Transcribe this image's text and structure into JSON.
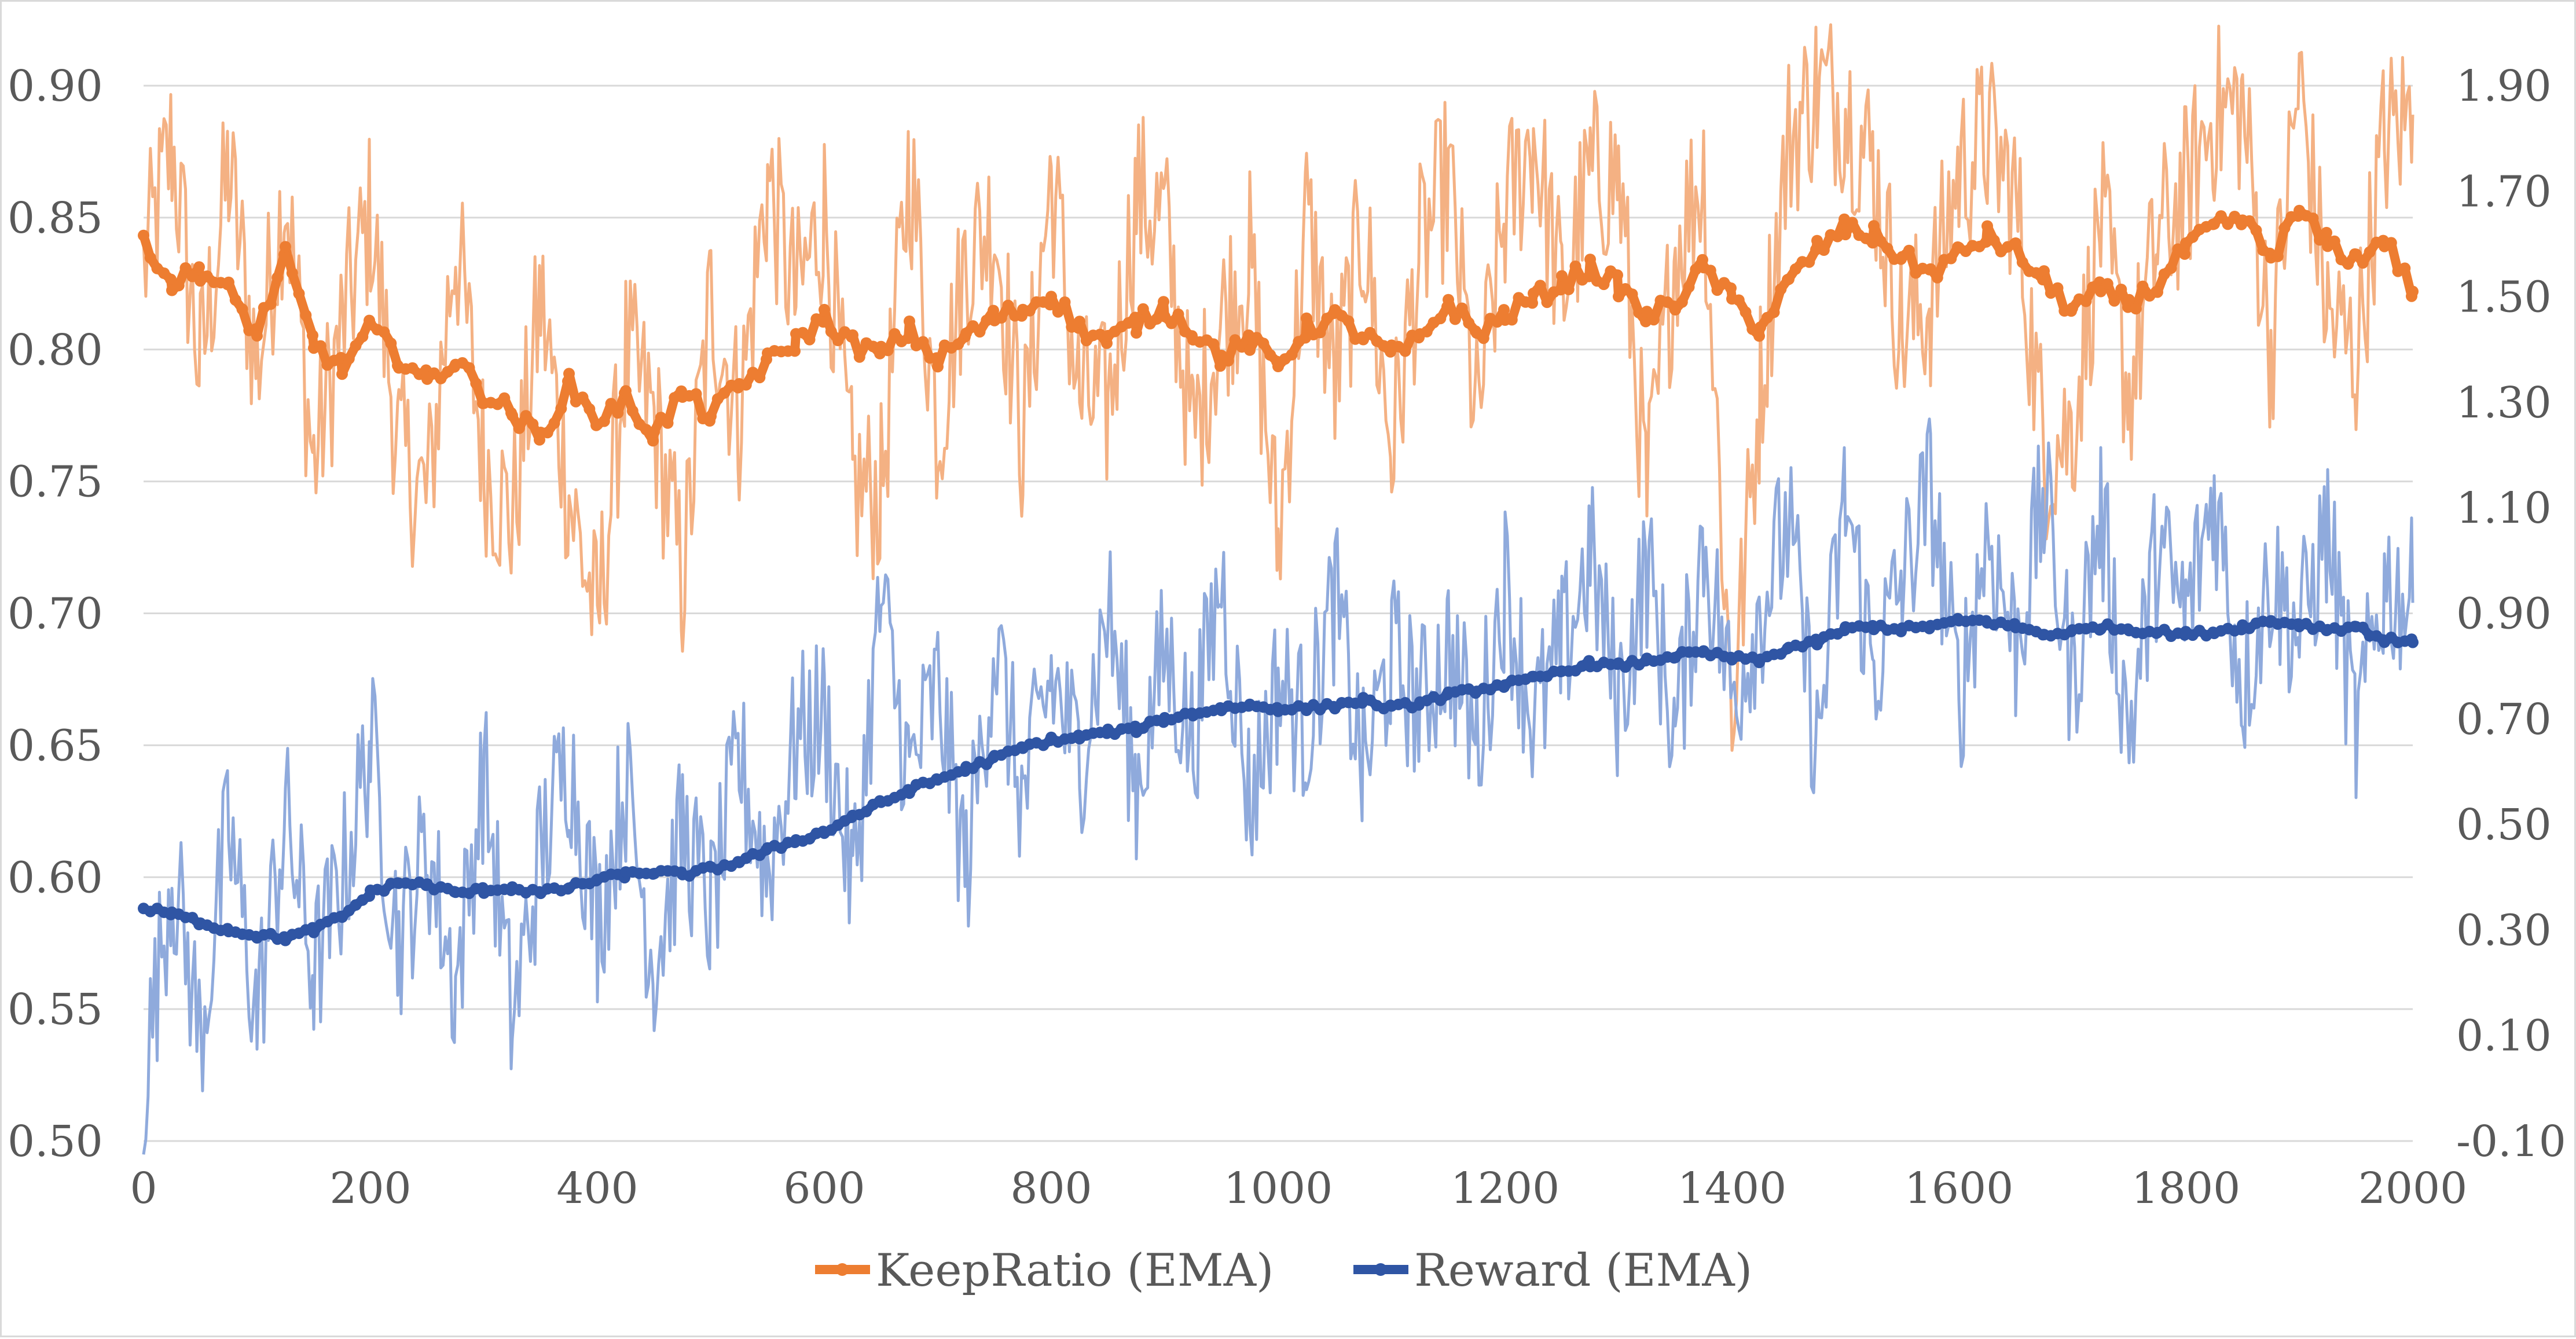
{
  "chart_data": {
    "type": "line",
    "title": "",
    "xlabel": "",
    "ylabel": "",
    "y2label": "",
    "xlim": [
      0,
      2000
    ],
    "ylim": [
      0.5,
      0.9
    ],
    "y2lim": [
      -0.1,
      1.9
    ],
    "x_ticks": [
      "0",
      "200",
      "400",
      "600",
      "800",
      "1000",
      "1200",
      "1400",
      "1600",
      "1800",
      "2000"
    ],
    "y_ticks": [
      "0.50",
      "0.55",
      "0.60",
      "0.65",
      "0.70",
      "0.75",
      "0.80",
      "0.85",
      "0.90"
    ],
    "y2_ticks": [
      "-0.10",
      "0.10",
      "0.30",
      "0.50",
      "0.70",
      "0.90",
      "1.10",
      "1.30",
      "1.50",
      "1.70",
      "1.90"
    ],
    "grid": true,
    "legend": "bottom-center",
    "colors": {
      "keep_raw": "#f4b183",
      "keep_ema": "#ed7d31",
      "reward_raw": "#8faadc",
      "reward_ema": "#2f55a4",
      "grid": "#d9d9d9",
      "text": "#595959"
    },
    "series": [
      {
        "name": "KeepRatio (EMA)",
        "axis": "left",
        "ema_x": [
          0,
          25,
          50,
          75,
          100,
          125,
          150,
          175,
          200,
          225,
          250,
          275,
          300,
          325,
          350,
          375,
          400,
          425,
          450,
          475,
          500,
          525,
          550,
          575,
          600,
          625,
          650,
          675,
          700,
          725,
          750,
          775,
          800,
          825,
          850,
          875,
          900,
          925,
          950,
          975,
          1000,
          1025,
          1050,
          1075,
          1100,
          1125,
          1150,
          1175,
          1200,
          1225,
          1250,
          1275,
          1300,
          1325,
          1350,
          1375,
          1400,
          1425,
          1450,
          1475,
          1500,
          1525,
          1550,
          1575,
          1600,
          1625,
          1650,
          1675,
          1700,
          1725,
          1750,
          1775,
          1800,
          1825,
          1850,
          1875,
          1900,
          1925,
          1950,
          1975,
          2000
        ],
        "ema_values": [
          0.843,
          0.825,
          0.83,
          0.822,
          0.806,
          0.835,
          0.802,
          0.793,
          0.808,
          0.797,
          0.788,
          0.796,
          0.783,
          0.776,
          0.766,
          0.787,
          0.773,
          0.781,
          0.768,
          0.783,
          0.775,
          0.786,
          0.795,
          0.803,
          0.812,
          0.802,
          0.798,
          0.807,
          0.796,
          0.805,
          0.812,
          0.815,
          0.821,
          0.808,
          0.803,
          0.81,
          0.816,
          0.807,
          0.797,
          0.803,
          0.794,
          0.808,
          0.812,
          0.805,
          0.798,
          0.803,
          0.818,
          0.806,
          0.813,
          0.819,
          0.825,
          0.831,
          0.824,
          0.812,
          0.818,
          0.831,
          0.819,
          0.808,
          0.825,
          0.838,
          0.846,
          0.843,
          0.835,
          0.829,
          0.836,
          0.843,
          0.837,
          0.826,
          0.815,
          0.822,
          0.818,
          0.824,
          0.838,
          0.846,
          0.849,
          0.835,
          0.852,
          0.84,
          0.834,
          0.842,
          0.822
        ],
        "raw_values": [
          0.83,
          0.878,
          0.792,
          0.868,
          0.793,
          0.862,
          0.756,
          0.809,
          0.851,
          0.762,
          0.742,
          0.843,
          0.758,
          0.734,
          0.819,
          0.745,
          0.695,
          0.798,
          0.774,
          0.712,
          0.819,
          0.775,
          0.864,
          0.818,
          0.853,
          0.748,
          0.745,
          0.872,
          0.769,
          0.835,
          0.849,
          0.764,
          0.867,
          0.781,
          0.777,
          0.858,
          0.849,
          0.766,
          0.812,
          0.834,
          0.725,
          0.851,
          0.786,
          0.846,
          0.762,
          0.836,
          0.865,
          0.773,
          0.851,
          0.882,
          0.82,
          0.865,
          0.866,
          0.743,
          0.839,
          0.868,
          0.661,
          0.787,
          0.88,
          0.899,
          0.893,
          0.869,
          0.806,
          0.818,
          0.868,
          0.88,
          0.858,
          0.761,
          0.77,
          0.849,
          0.783,
          0.841,
          0.86,
          0.889,
          0.892,
          0.8,
          0.902,
          0.813,
          0.797,
          0.88,
          0.889
        ]
      },
      {
        "name": "Reward (EMA)",
        "axis": "right",
        "ema_x": [
          0,
          25,
          50,
          75,
          100,
          125,
          150,
          175,
          200,
          225,
          250,
          275,
          300,
          325,
          350,
          375,
          400,
          425,
          450,
          475,
          500,
          525,
          550,
          575,
          600,
          625,
          650,
          675,
          700,
          725,
          750,
          775,
          800,
          825,
          850,
          875,
          900,
          925,
          950,
          975,
          1000,
          1025,
          1050,
          1075,
          1100,
          1125,
          1150,
          1175,
          1200,
          1225,
          1250,
          1275,
          1300,
          1325,
          1350,
          1375,
          1400,
          1425,
          1450,
          1475,
          1500,
          1525,
          1550,
          1575,
          1600,
          1625,
          1650,
          1675,
          1700,
          1725,
          1750,
          1775,
          1800,
          1825,
          1850,
          1875,
          1900,
          1925,
          1950,
          1975,
          2000
        ],
        "ema_values": [
          0.34,
          0.33,
          0.315,
          0.3,
          0.29,
          0.285,
          0.3,
          0.325,
          0.37,
          0.39,
          0.385,
          0.37,
          0.375,
          0.38,
          0.37,
          0.38,
          0.395,
          0.405,
          0.41,
          0.405,
          0.415,
          0.43,
          0.45,
          0.47,
          0.485,
          0.515,
          0.54,
          0.565,
          0.585,
          0.605,
          0.625,
          0.645,
          0.66,
          0.665,
          0.675,
          0.68,
          0.7,
          0.71,
          0.72,
          0.725,
          0.72,
          0.72,
          0.725,
          0.735,
          0.72,
          0.73,
          0.745,
          0.755,
          0.765,
          0.775,
          0.79,
          0.805,
          0.8,
          0.81,
          0.82,
          0.825,
          0.815,
          0.81,
          0.835,
          0.845,
          0.87,
          0.875,
          0.87,
          0.875,
          0.885,
          0.885,
          0.875,
          0.86,
          0.865,
          0.875,
          0.87,
          0.865,
          0.86,
          0.865,
          0.875,
          0.885,
          0.88,
          0.87,
          0.875,
          0.85,
          0.845
        ],
        "raw_values": [
          0.0,
          0.42,
          0.1,
          0.49,
          0.14,
          0.52,
          0.22,
          0.39,
          0.66,
          0.28,
          0.46,
          0.19,
          0.6,
          0.12,
          0.45,
          0.63,
          0.31,
          0.58,
          0.23,
          0.49,
          0.33,
          0.62,
          0.41,
          0.66,
          0.71,
          0.38,
          0.92,
          0.59,
          0.76,
          0.41,
          0.85,
          0.54,
          0.78,
          0.62,
          0.91,
          0.57,
          0.83,
          0.66,
          0.97,
          0.54,
          0.77,
          0.68,
          0.93,
          0.6,
          0.82,
          0.72,
          0.84,
          0.65,
          0.96,
          0.69,
          0.82,
          1.01,
          0.73,
          0.99,
          0.67,
          1.04,
          0.74,
          0.91,
          1.07,
          0.64,
          1.12,
          0.79,
          0.96,
          1.14,
          0.73,
          1.06,
          0.84,
          1.12,
          0.77,
          1.09,
          0.67,
          1.02,
          0.89,
          1.13,
          0.76,
          0.97,
          0.86,
          1.06,
          0.66,
          0.96,
          0.92
        ]
      }
    ]
  }
}
